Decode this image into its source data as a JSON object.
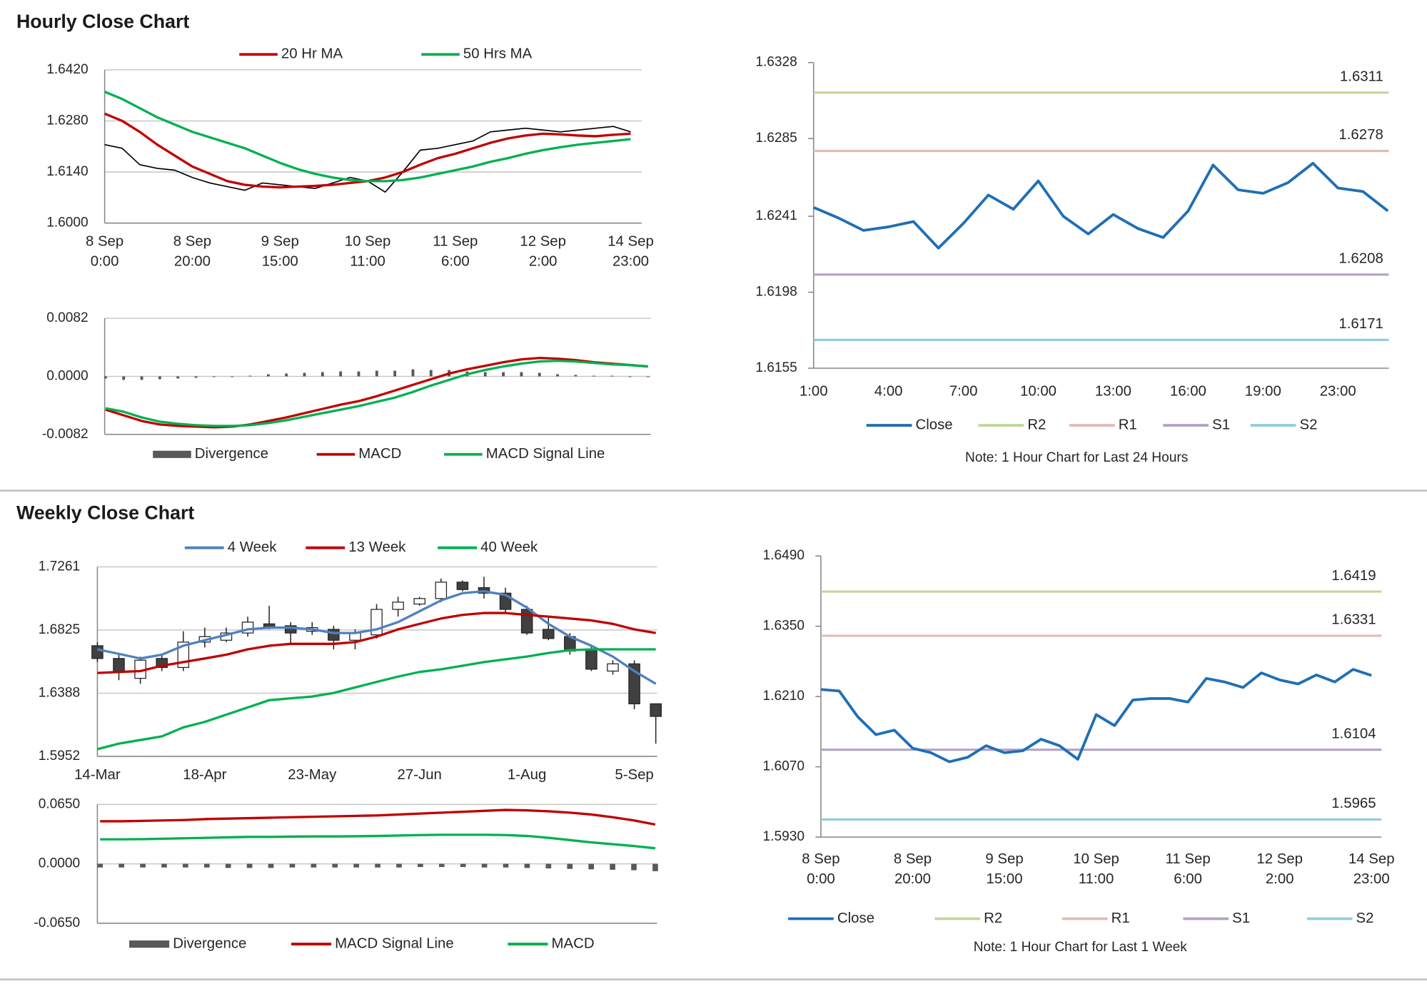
{
  "headings": [
    "Hourly Close Chart",
    "Weekly Close Chart"
  ],
  "chart_data": [
    {
      "type": "line",
      "grid": true,
      "categories": [
        "8 Sep\n0:00",
        null,
        null,
        null,
        null,
        "8 Sep\n20:00",
        null,
        null,
        null,
        null,
        "9 Sep\n15:00",
        null,
        null,
        null,
        null,
        "10 Sep\n11:00",
        null,
        null,
        null,
        null,
        "11 Sep\n6:00",
        null,
        null,
        null,
        null,
        "12 Sep\n2:00",
        null,
        null,
        null,
        null,
        "14 Sep\n23:00"
      ],
      "ylim": [
        1.6,
        1.642
      ],
      "yticks": [
        {
          "value": 1.6,
          "label": "1.6000"
        },
        {
          "value": 1.614,
          "label": "1.6140"
        },
        {
          "value": 1.628,
          "label": "1.6280"
        },
        {
          "value": 1.642,
          "label": "1.6420"
        }
      ],
      "series": [
        {
          "color": "#000000",
          "values": [
            1.6215,
            1.6205,
            1.616,
            1.615,
            1.6145,
            1.6125,
            1.611,
            1.61,
            1.609,
            1.611,
            1.6105,
            1.61,
            1.6095,
            1.611,
            1.6125,
            1.6115,
            1.6085,
            1.614,
            1.62,
            1.6205,
            1.6215,
            1.6225,
            1.625,
            1.6255,
            1.626,
            1.6255,
            1.625,
            1.6255,
            1.626,
            1.6265,
            1.625
          ]
        },
        {
          "name": "20 Hr MA",
          "color": "#c00000",
          "values": [
            1.63,
            1.628,
            1.625,
            1.6215,
            1.6185,
            1.6155,
            1.6135,
            1.6115,
            1.6105,
            1.61,
            1.6098,
            1.61,
            1.6102,
            1.6105,
            1.611,
            1.6115,
            1.6125,
            1.614,
            1.616,
            1.6178,
            1.619,
            1.6205,
            1.622,
            1.6232,
            1.624,
            1.6245,
            1.6243,
            1.624,
            1.6238,
            1.6242,
            1.6245
          ]
        },
        {
          "name": "50 Hrs MA",
          "color": "#00b050",
          "values": [
            1.636,
            1.634,
            1.6315,
            1.629,
            1.627,
            1.625,
            1.6235,
            1.622,
            1.6205,
            1.6185,
            1.6165,
            1.6148,
            1.6135,
            1.6125,
            1.6118,
            1.6115,
            1.6115,
            1.6118,
            1.6125,
            1.6135,
            1.6145,
            1.6155,
            1.6168,
            1.6178,
            1.619,
            1.62,
            1.6208,
            1.6215,
            1.622,
            1.6225,
            1.623
          ]
        }
      ]
    },
    {
      "type": "line",
      "grid": true,
      "ylim": [
        -0.0082,
        0.0082
      ],
      "yticks": [
        -0.0082,
        {
          "value": 0,
          "label": "0.0000"
        },
        0.0082
      ],
      "series": [
        {
          "name": "Divergence",
          "type": "bar",
          "color": "#595959",
          "values": [
            -0.0003,
            -0.0005,
            -0.0005,
            -0.0004,
            -0.0003,
            -0.0002,
            -0.0001,
            0,
            0.0001,
            0.0003,
            0.0004,
            0.0005,
            0.0006,
            0.0007,
            0.0007,
            0.0008,
            0.0008,
            0.001,
            0.0009,
            0.0009,
            0.0007,
            0.0006,
            0.0006,
            0.0006,
            0.0005,
            0.0003,
            0.0002,
            0.0001,
            0.0001,
            0,
            0
          ]
        },
        {
          "name": "MACD",
          "color": "#c00000",
          "values": [
            -0.0047,
            -0.0055,
            -0.0063,
            -0.0068,
            -0.007,
            -0.0071,
            -0.0072,
            -0.0071,
            -0.0068,
            -0.0063,
            -0.0058,
            -0.0052,
            -0.0046,
            -0.004,
            -0.0035,
            -0.0028,
            -0.002,
            -0.0012,
            -0.0004,
            0.0004,
            0.001,
            0.0015,
            0.002,
            0.0024,
            0.0026,
            0.0025,
            0.0023,
            0.002,
            0.0018,
            0.0016,
            0.0014
          ]
        },
        {
          "name": "MACD Signal Line",
          "color": "#00b050",
          "values": [
            -0.0045,
            -0.005,
            -0.0058,
            -0.0064,
            -0.0067,
            -0.0069,
            -0.007,
            -0.007,
            -0.0069,
            -0.0066,
            -0.0062,
            -0.0057,
            -0.0052,
            -0.0047,
            -0.0042,
            -0.0036,
            -0.003,
            -0.0022,
            -0.0013,
            -0.0005,
            0.0003,
            0.0009,
            0.0014,
            0.0018,
            0.0021,
            0.0022,
            0.0021,
            0.0019,
            0.0017,
            0.0016,
            0.0014
          ]
        }
      ]
    },
    {
      "type": "line",
      "grid": false,
      "categories": [
        "1:00",
        null,
        null,
        "4:00",
        null,
        null,
        "7:00",
        null,
        null,
        "10:00",
        null,
        null,
        "13:00",
        null,
        null,
        "16:00",
        null,
        null,
        "19:00",
        null,
        null,
        "23:00",
        null,
        null
      ],
      "ylim": [
        1.6155,
        1.6328
      ],
      "yticks": [
        1.6155,
        1.6198,
        1.6241,
        1.6285,
        1.6328
      ],
      "series": [
        {
          "name": "Close",
          "color": "#1f6fb5",
          "values": [
            1.6246,
            1.624,
            1.6233,
            1.6235,
            1.6238,
            1.6223,
            1.6237,
            1.6253,
            1.6245,
            1.6261,
            1.6241,
            1.6231,
            1.6242,
            1.6234,
            1.6229,
            1.6244,
            1.627,
            1.6256,
            1.6254,
            1.626,
            1.6271,
            1.6257,
            1.6255,
            1.6244
          ]
        }
      ],
      "levels": [
        {
          "name": "R2",
          "color": "#c3d69b",
          "value": 1.6311
        },
        {
          "name": "R1",
          "color": "#e6b9b8",
          "value": 1.6278
        },
        {
          "name": "S1",
          "color": "#b3a2c7",
          "value": 1.6208
        },
        {
          "name": "S2",
          "color": "#93cddd",
          "value": 1.6171
        }
      ],
      "note": "Note: 1 Hour Chart for Last 24 Hours"
    },
    {
      "type": "candlestick",
      "grid": true,
      "up_color": "#ffffff",
      "down_color": "#404040",
      "categories": [
        "14-Mar",
        null,
        null,
        null,
        null,
        "18-Apr",
        null,
        null,
        null,
        null,
        "23-May",
        null,
        null,
        null,
        null,
        "27-Jun",
        null,
        null,
        null,
        null,
        "1-Aug",
        null,
        null,
        null,
        null,
        "5-Sep",
        null
      ],
      "ylim": [
        1.5952,
        1.7261
      ],
      "yticks": [
        1.5952,
        1.6388,
        1.6825,
        1.7261
      ],
      "open": [
        1.6716,
        1.6628,
        1.6491,
        1.6628,
        1.6566,
        1.6741,
        1.6754,
        1.6804,
        1.6867,
        1.6854,
        1.6816,
        1.6829,
        1.6754,
        1.6791,
        1.6967,
        1.7004,
        1.7042,
        1.7155,
        1.7117,
        1.7079,
        1.6967,
        1.6829,
        1.6779,
        1.6691,
        1.6541,
        1.6591,
        1.6315
      ],
      "high": [
        1.6741,
        1.6654,
        1.6641,
        1.6654,
        1.6816,
        1.6841,
        1.6841,
        1.6917,
        1.6992,
        1.6879,
        1.6879,
        1.6854,
        1.6829,
        1.7004,
        1.7054,
        1.7054,
        1.718,
        1.7167,
        1.7192,
        1.7117,
        1.6992,
        1.6917,
        1.6804,
        1.6716,
        1.6616,
        1.6616,
        1.6315
      ],
      "low": [
        1.6603,
        1.6478,
        1.6453,
        1.6541,
        1.6541,
        1.6704,
        1.6741,
        1.6779,
        1.6829,
        1.6729,
        1.6791,
        1.6691,
        1.6691,
        1.6766,
        1.6917,
        1.6992,
        1.7017,
        1.7092,
        1.7042,
        1.6942,
        1.6791,
        1.6754,
        1.6654,
        1.6541,
        1.6516,
        1.6278,
        1.604
      ],
      "close": [
        1.6628,
        1.6541,
        1.6616,
        1.6566,
        1.6741,
        1.6779,
        1.6804,
        1.6879,
        1.6841,
        1.6804,
        1.6841,
        1.6754,
        1.6804,
        1.6967,
        1.7017,
        1.7042,
        1.7155,
        1.7104,
        1.7079,
        1.6967,
        1.6804,
        1.6766,
        1.6679,
        1.6554,
        1.6591,
        1.6315,
        1.6228
      ],
      "series": [
        {
          "name": "4 Week",
          "color": "#4f81bd",
          "values": [
            1.6691,
            1.666,
            1.6628,
            1.6654,
            1.6716,
            1.6754,
            1.6791,
            1.6829,
            1.6841,
            1.6841,
            1.6829,
            1.6804,
            1.6804,
            1.6829,
            1.6879,
            1.6954,
            1.7029,
            1.7079,
            1.7092,
            1.7067,
            1.6979,
            1.6867,
            1.6779,
            1.6716,
            1.6641,
            1.6541,
            1.6453
          ]
        },
        {
          "name": "13 Week",
          "color": "#c00000",
          "values": [
            1.6528,
            1.6535,
            1.6541,
            1.6578,
            1.6603,
            1.6628,
            1.6654,
            1.6691,
            1.6716,
            1.6729,
            1.6729,
            1.6729,
            1.6741,
            1.6779,
            1.6829,
            1.6867,
            1.6904,
            1.6929,
            1.6942,
            1.6942,
            1.6929,
            1.6917,
            1.6904,
            1.6891,
            1.6867,
            1.6829,
            1.6804
          ]
        },
        {
          "name": "40 Week",
          "color": "#00b050",
          "values": [
            1.6002,
            1.604,
            1.6065,
            1.609,
            1.6152,
            1.619,
            1.624,
            1.629,
            1.634,
            1.6353,
            1.6365,
            1.639,
            1.6428,
            1.6466,
            1.6503,
            1.6535,
            1.6553,
            1.6578,
            1.6603,
            1.6622,
            1.6641,
            1.6666,
            1.6685,
            1.6691,
            1.6691,
            1.6691,
            1.6691
          ]
        }
      ]
    },
    {
      "type": "line",
      "grid": true,
      "ylim": [
        -0.065,
        0.065
      ],
      "yticks": [
        {
          "value": -0.065,
          "label": "-0.0650"
        },
        {
          "value": 0,
          "label": "0.0000"
        },
        {
          "value": 0.065,
          "label": "0.0650"
        }
      ],
      "series": [
        {
          "name": "Divergence",
          "type": "bar",
          "color": "#595959",
          "values": [
            -0.004,
            -0.004,
            -0.004,
            -0.004,
            -0.004,
            -0.004,
            -0.0045,
            -0.0045,
            -0.0045,
            -0.004,
            -0.004,
            -0.004,
            -0.004,
            -0.004,
            -0.004,
            -0.0035,
            -0.0035,
            -0.0035,
            -0.004,
            -0.004,
            -0.0045,
            -0.005,
            -0.0055,
            -0.006,
            -0.0065,
            -0.007,
            -0.008
          ]
        },
        {
          "name": "MACD Signal Line",
          "color": "#c00000",
          "values": [
            0.0466,
            0.0466,
            0.047,
            0.0475,
            0.048,
            0.049,
            0.0495,
            0.05,
            0.0505,
            0.051,
            0.0515,
            0.052,
            0.0525,
            0.053,
            0.054,
            0.055,
            0.056,
            0.057,
            0.058,
            0.059,
            0.0585,
            0.0575,
            0.056,
            0.054,
            0.051,
            0.0475,
            0.043
          ]
        },
        {
          "name": "MACD",
          "color": "#00b050",
          "values": [
            0.0268,
            0.0268,
            0.027,
            0.0275,
            0.028,
            0.0285,
            0.029,
            0.0295,
            0.0295,
            0.0298,
            0.03,
            0.03,
            0.0302,
            0.0305,
            0.031,
            0.0315,
            0.0318,
            0.0318,
            0.0318,
            0.0315,
            0.0305,
            0.0285,
            0.026,
            0.0235,
            0.0215,
            0.0195,
            0.017
          ]
        }
      ]
    },
    {
      "type": "line",
      "grid": false,
      "categories": [
        "8 Sep\n0:00",
        null,
        null,
        null,
        null,
        "8 Sep\n20:00",
        null,
        null,
        null,
        null,
        "9 Sep\n15:00",
        null,
        null,
        null,
        null,
        "10 Sep\n11:00",
        null,
        null,
        null,
        null,
        "11 Sep\n6:00",
        null,
        null,
        null,
        null,
        "12 Sep\n2:00",
        null,
        null,
        null,
        null,
        "14 Sep\n23:00"
      ],
      "ylim": [
        1.593,
        1.649
      ],
      "yticks": [
        {
          "value": 1.593,
          "label": "1.5930"
        },
        {
          "value": 1.607,
          "label": "1.6070"
        },
        {
          "value": 1.621,
          "label": "1.6210"
        },
        {
          "value": 1.635,
          "label": "1.6350"
        },
        {
          "value": 1.649,
          "label": "1.6490"
        }
      ],
      "series": [
        {
          "name": "Close",
          "color": "#1f6fb5",
          "values": [
            1.6224,
            1.6221,
            1.617,
            1.6134,
            1.6143,
            1.6107,
            1.6098,
            1.608,
            1.6089,
            1.6112,
            1.6098,
            1.6102,
            1.6125,
            1.6112,
            1.6085,
            1.6174,
            1.6152,
            1.6203,
            1.6206,
            1.6206,
            1.6199,
            1.6246,
            1.6239,
            1.6228,
            1.6257,
            1.6243,
            1.6235,
            1.6253,
            1.6239,
            1.6264,
            1.6252
          ]
        }
      ],
      "levels": [
        {
          "name": "R2",
          "color": "#c3d69b",
          "value": 1.6419
        },
        {
          "name": "R1",
          "color": "#e6b9b8",
          "value": 1.6331
        },
        {
          "name": "S1",
          "color": "#b3a2c7",
          "value": 1.6104
        },
        {
          "name": "S2",
          "color": "#93cddd",
          "value": 1.5965
        }
      ],
      "note": "Note: 1 Hour Chart for Last 1 Week"
    }
  ]
}
